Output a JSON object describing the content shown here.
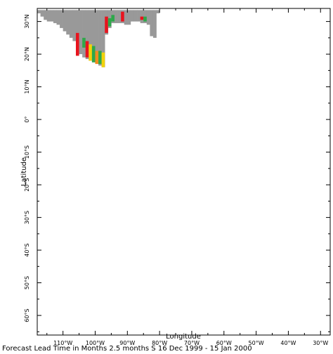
{
  "chart_data": {
    "type": "heatmap",
    "xlabel": "Longitude",
    "ylabel": "Latitude",
    "caption": "Forecast Lead Time in Months 2.5 months S 16 Dec 1999 - 15 Jan 2000",
    "xlim": [
      -118,
      -27
    ],
    "ylim": [
      -66,
      34
    ],
    "x_ticks": [
      {
        "value": -110,
        "label": "110°W"
      },
      {
        "value": -100,
        "label": "100°W"
      },
      {
        "value": -90,
        "label": "90°W"
      },
      {
        "value": -80,
        "label": "80°W"
      },
      {
        "value": -70,
        "label": "70°W"
      },
      {
        "value": -60,
        "label": "60°W"
      },
      {
        "value": -50,
        "label": "50°W"
      },
      {
        "value": -40,
        "label": "40°W"
      },
      {
        "value": -30,
        "label": "30°W"
      }
    ],
    "y_ticks": [
      {
        "value": 30,
        "label": "30°N"
      },
      {
        "value": 20,
        "label": "20°N"
      },
      {
        "value": 10,
        "label": "10°N"
      },
      {
        "value": 0,
        "label": "0°"
      },
      {
        "value": -10,
        "label": "10°S"
      },
      {
        "value": -20,
        "label": "20°S"
      },
      {
        "value": -30,
        "label": "30°S"
      },
      {
        "value": -40,
        "label": "40°S"
      },
      {
        "value": -50,
        "label": "50°S"
      },
      {
        "value": -60,
        "label": "60°S"
      }
    ],
    "grid": false,
    "colors": {
      "land": "#999999",
      "red": "#e8141e",
      "green": "#2ea84a",
      "yellow": "#f2d20a",
      "orange": "#f08c1e",
      "axis": "#000000"
    },
    "land_columns": [
      {
        "lon": -117.5,
        "lat_min": 32.5,
        "lat_max": 33.5
      },
      {
        "lon": -116.5,
        "lat_min": 31.5,
        "lat_max": 33.5
      },
      {
        "lon": -115.5,
        "lat_min": 30.5,
        "lat_max": 33.5
      },
      {
        "lon": -114.5,
        "lat_min": 30,
        "lat_max": 33.5
      },
      {
        "lon": -113.5,
        "lat_min": 30,
        "lat_max": 33.5
      },
      {
        "lon": -112.5,
        "lat_min": 29.5,
        "lat_max": 33.5
      },
      {
        "lon": -111.5,
        "lat_min": 29,
        "lat_max": 33.5
      },
      {
        "lon": -110.5,
        "lat_min": 28,
        "lat_max": 33.5
      },
      {
        "lon": -109.5,
        "lat_min": 27,
        "lat_max": 33.5
      },
      {
        "lon": -108.5,
        "lat_min": 26,
        "lat_max": 33.5
      },
      {
        "lon": -107.5,
        "lat_min": 25,
        "lat_max": 33.5
      },
      {
        "lon": -106.5,
        "lat_min": 24,
        "lat_max": 33.5
      },
      {
        "lon": -105.5,
        "lat_min": 22,
        "lat_max": 33.5
      },
      {
        "lon": -104.5,
        "lat_min": 20,
        "lat_max": 33.5
      },
      {
        "lon": -103.5,
        "lat_min": 19,
        "lat_max": 33.5
      },
      {
        "lon": -102.5,
        "lat_min": 18.5,
        "lat_max": 33.5
      },
      {
        "lon": -101.5,
        "lat_min": 18,
        "lat_max": 33.5
      },
      {
        "lon": -100.5,
        "lat_min": 17.5,
        "lat_max": 33.5
      },
      {
        "lon": -99.5,
        "lat_min": 17,
        "lat_max": 33.5
      },
      {
        "lon": -98.5,
        "lat_min": 16.5,
        "lat_max": 33.5
      },
      {
        "lon": -97.5,
        "lat_min": 16,
        "lat_max": 33.5
      },
      {
        "lon": -96.5,
        "lat_min": 26,
        "lat_max": 33.5
      },
      {
        "lon": -95.5,
        "lat_min": 28,
        "lat_max": 33.5
      },
      {
        "lon": -94.5,
        "lat_min": 29.5,
        "lat_max": 33.5
      },
      {
        "lon": -93.5,
        "lat_min": 29.5,
        "lat_max": 33.5
      },
      {
        "lon": -92.5,
        "lat_min": 29.5,
        "lat_max": 33.5
      },
      {
        "lon": -91.5,
        "lat_min": 29.5,
        "lat_max": 33.5
      },
      {
        "lon": -90.5,
        "lat_min": 29,
        "lat_max": 33.5
      },
      {
        "lon": -89.5,
        "lat_min": 29,
        "lat_max": 33.5
      },
      {
        "lon": -88.5,
        "lat_min": 30,
        "lat_max": 33.5
      },
      {
        "lon": -87.5,
        "lat_min": 30,
        "lat_max": 33.5
      },
      {
        "lon": -86.5,
        "lat_min": 30,
        "lat_max": 33.5
      },
      {
        "lon": -85.5,
        "lat_min": 29.5,
        "lat_max": 33.5
      },
      {
        "lon": -84.5,
        "lat_min": 29.5,
        "lat_max": 33.5
      },
      {
        "lon": -83.5,
        "lat_min": 29,
        "lat_max": 33.5
      },
      {
        "lon": -82.5,
        "lat_min": 25.5,
        "lat_max": 33.5
      },
      {
        "lon": -81.5,
        "lat_min": 25,
        "lat_max": 33.5
      },
      {
        "lon": -80.5,
        "lat_min": 32.5,
        "lat_max": 33.5
      }
    ],
    "colored_cells": [
      {
        "lon": -105.5,
        "lat_min": 19.5,
        "lat_max": 26.5,
        "color": "red"
      },
      {
        "lon": -103.5,
        "lat_min": 22,
        "lat_max": 25,
        "color": "green"
      },
      {
        "lon": -102.5,
        "lat_min": 19,
        "lat_max": 24,
        "color": "red"
      },
      {
        "lon": -101.5,
        "lat_min": 18,
        "lat_max": 23,
        "color": "yellow"
      },
      {
        "lon": -100.5,
        "lat_min": 17.5,
        "lat_max": 22.5,
        "color": "green"
      },
      {
        "lon": -99.5,
        "lat_min": 17,
        "lat_max": 21,
        "color": "orange"
      },
      {
        "lon": -98.5,
        "lat_min": 17,
        "lat_max": 21,
        "color": "green"
      },
      {
        "lon": -97.5,
        "lat_min": 16,
        "lat_max": 20.5,
        "color": "yellow"
      },
      {
        "lon": -96.5,
        "lat_min": 26.5,
        "lat_max": 31.5,
        "color": "red"
      },
      {
        "lon": -95.5,
        "lat_min": 28.5,
        "lat_max": 31,
        "color": "green"
      },
      {
        "lon": -94.5,
        "lat_min": 30,
        "lat_max": 32,
        "color": "green"
      },
      {
        "lon": -91.5,
        "lat_min": 30,
        "lat_max": 33,
        "color": "red"
      },
      {
        "lon": -85.5,
        "lat_min": 30.5,
        "lat_max": 31.5,
        "color": "red"
      },
      {
        "lon": -84.5,
        "lat_min": 30,
        "lat_max": 31.5,
        "color": "green"
      }
    ]
  }
}
